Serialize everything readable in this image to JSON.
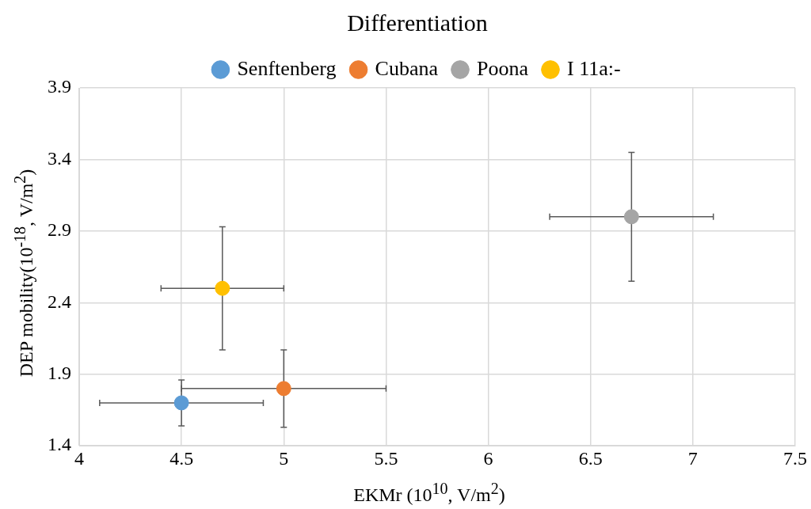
{
  "chart_data": {
    "type": "scatter",
    "title": "Differentiation",
    "xlabel": "EKMr (10$^{10}$, V/m$^{2}$)",
    "ylabel": "DEP mobility(10$^{-18}$, V/m$^{2}$)",
    "series": [
      {
        "name": "Senftenberg",
        "color": "#5b9bd5",
        "x": [
          4.5
        ],
        "values": [
          1.7
        ],
        "errors": [
          0.16
        ],
        "xerrors": [
          0.4
        ]
      },
      {
        "name": "Cubana",
        "color": "#ed7d31",
        "x": [
          5
        ],
        "values": [
          1.8
        ],
        "errors": [
          0.27
        ],
        "xerrors": [
          0.5
        ]
      },
      {
        "name": "Poona",
        "color": "#a5a5a5",
        "x": [
          6.7
        ],
        "values": [
          3.0
        ],
        "errors": [
          0.45
        ],
        "xerrors": [
          0.4
        ]
      },
      {
        "name": "I 11a:-",
        "color": "#ffc000",
        "x": [
          4.7
        ],
        "values": [
          2.5
        ],
        "errors": [
          0.43
        ],
        "xerrors": [
          0.3
        ]
      }
    ],
    "xlim": [
      4,
      7.5
    ],
    "xticks": [
      4,
      4.5,
      5,
      5.5,
      6,
      6.5,
      7,
      7.5
    ],
    "ylim": [
      1.4,
      3.9
    ],
    "yticks": [
      1.4,
      1.9,
      2.4,
      2.9,
      3.4,
      3.9
    ],
    "grid": true,
    "legend": "top",
    "marker": "circle"
  }
}
